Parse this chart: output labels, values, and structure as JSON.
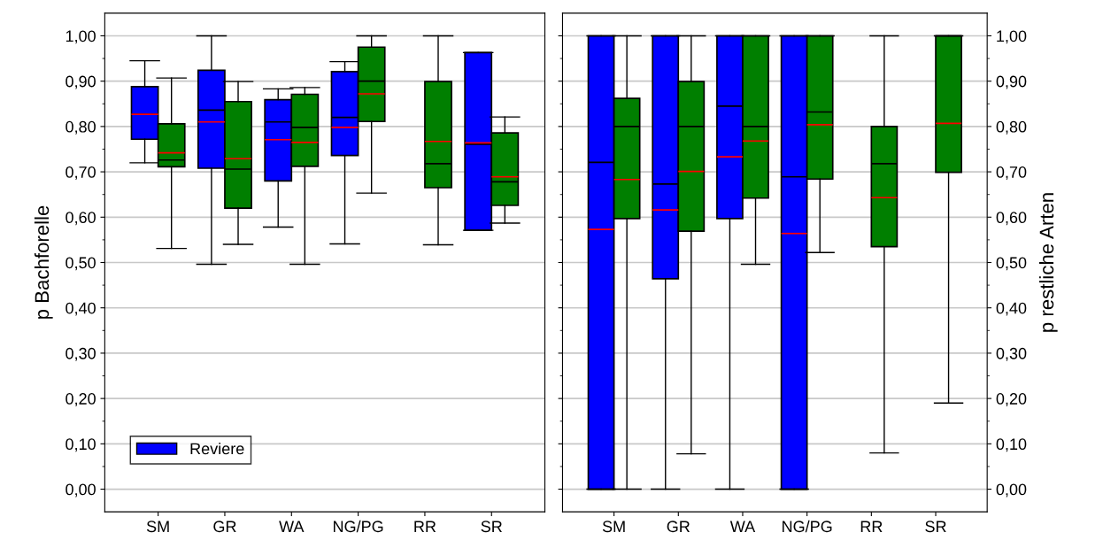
{
  "chart_data": [
    {
      "type": "box",
      "ylabel": "p Bachforelle",
      "categories": [
        "SM",
        "GR",
        "WA",
        "NG/PG",
        "RR",
        "SR"
      ],
      "ylim": [
        -0.05,
        1.05
      ],
      "yticks": [
        {
          "value": 0,
          "label": "0,00"
        },
        {
          "value": 0.1,
          "label": "0,10"
        },
        {
          "value": 0.2,
          "label": "0,20"
        },
        {
          "value": 0.3,
          "label": "0,30"
        },
        {
          "value": 0.4,
          "label": "0,40"
        },
        {
          "value": 0.5,
          "label": "0,50"
        },
        {
          "value": 0.6,
          "label": "0,60"
        },
        {
          "value": 0.7,
          "label": "0,70"
        },
        {
          "value": 0.8,
          "label": "0,80"
        },
        {
          "value": 0.9,
          "label": "0,90"
        },
        {
          "value": 1.0,
          "label": "1,00"
        }
      ],
      "grid": "y",
      "legend": "bottom left",
      "series": [
        {
          "name": "Reviere",
          "color": "#0000ff",
          "boxes": [
            {
              "low": 0.72,
              "q1": 0.772,
              "median": 0.827,
              "q3": 0.888,
              "high": 0.945,
              "mean": 0.827
            },
            {
              "low": 0.496,
              "q1": 0.708,
              "median": 0.836,
              "q3": 0.924,
              "high": 1.0,
              "mean": 0.81
            },
            {
              "low": 0.578,
              "q1": 0.68,
              "median": 0.81,
              "q3": 0.859,
              "high": 0.883,
              "mean": 0.771
            },
            {
              "low": 0.541,
              "q1": 0.736,
              "median": 0.82,
              "q3": 0.921,
              "high": 0.943,
              "mean": 0.798
            },
            null,
            {
              "low": 0.571,
              "q1": 0.571,
              "median": 0.761,
              "q3": 0.963,
              "high": 0.963,
              "mean": 0.764
            }
          ]
        },
        {
          "color": "#007f00",
          "boxes": [
            {
              "low": 0.531,
              "q1": 0.711,
              "median": 0.726,
              "q3": 0.806,
              "high": 0.907,
              "mean": 0.742
            },
            {
              "low": 0.54,
              "q1": 0.62,
              "median": 0.706,
              "q3": 0.855,
              "high": 0.899,
              "mean": 0.729
            },
            {
              "low": 0.496,
              "q1": 0.712,
              "median": 0.798,
              "q3": 0.871,
              "high": 0.886,
              "mean": 0.765
            },
            {
              "low": 0.653,
              "q1": 0.811,
              "median": 0.9,
              "q3": 0.975,
              "high": 1.0,
              "mean": 0.872
            },
            {
              "low": 0.539,
              "q1": 0.665,
              "median": 0.718,
              "q3": 0.899,
              "high": 1.0,
              "mean": 0.767
            },
            {
              "low": 0.587,
              "q1": 0.626,
              "median": 0.678,
              "q3": 0.786,
              "high": 0.821,
              "mean": 0.689
            }
          ]
        }
      ]
    },
    {
      "type": "box",
      "ylabel": "p restliche Arten",
      "categories": [
        "SM",
        "GR",
        "WA",
        "NG/PG",
        "RR",
        "SR"
      ],
      "ylim": [
        -0.05,
        1.05
      ],
      "yticks": [
        {
          "value": 0,
          "label": "0,00"
        },
        {
          "value": 0.1,
          "label": "0,10"
        },
        {
          "value": 0.2,
          "label": "0,20"
        },
        {
          "value": 0.3,
          "label": "0,30"
        },
        {
          "value": 0.4,
          "label": "0,40"
        },
        {
          "value": 0.5,
          "label": "0,50"
        },
        {
          "value": 0.6,
          "label": "0,60"
        },
        {
          "value": 0.7,
          "label": "0,70"
        },
        {
          "value": 0.8,
          "label": "0,80"
        },
        {
          "value": 0.9,
          "label": "0,90"
        },
        {
          "value": 1.0,
          "label": "1,00"
        }
      ],
      "grid": "y",
      "series": [
        {
          "color": "#0000ff",
          "boxes": [
            {
              "low": 0.0,
              "q1": 0.0,
              "median": 0.721,
              "q3": 1.0,
              "high": 1.0,
              "mean": 0.573
            },
            {
              "low": 0.0,
              "q1": 0.464,
              "median": 0.673,
              "q3": 1.0,
              "high": 1.0,
              "mean": 0.616
            },
            {
              "low": 0.0,
              "q1": 0.597,
              "median": 0.845,
              "q3": 1.0,
              "high": 1.0,
              "mean": 0.733
            },
            {
              "low": 0.0,
              "q1": 0.0,
              "median": 0.689,
              "q3": 1.0,
              "high": 1.0,
              "mean": 0.564
            },
            null,
            null
          ]
        },
        {
          "color": "#007f00",
          "boxes": [
            {
              "low": 0.0,
              "q1": 0.597,
              "median": 0.8,
              "q3": 0.862,
              "high": 1.0,
              "mean": 0.683
            },
            {
              "low": 0.078,
              "q1": 0.569,
              "median": 0.8,
              "q3": 0.899,
              "high": 1.0,
              "mean": 0.701
            },
            {
              "low": 0.496,
              "q1": 0.642,
              "median": 0.8,
              "q3": 1.0,
              "high": 1.0,
              "mean": 0.768
            },
            {
              "low": 0.522,
              "q1": 0.684,
              "median": 0.832,
              "q3": 1.0,
              "high": 1.0,
              "mean": 0.804
            },
            {
              "low": 0.08,
              "q1": 0.535,
              "median": 0.718,
              "q3": 0.8,
              "high": 1.0,
              "mean": 0.643
            },
            {
              "low": 0.19,
              "q1": 0.699,
              "median": 1.0,
              "q3": 1.0,
              "high": 1.0,
              "mean": 0.807
            }
          ]
        }
      ]
    }
  ]
}
